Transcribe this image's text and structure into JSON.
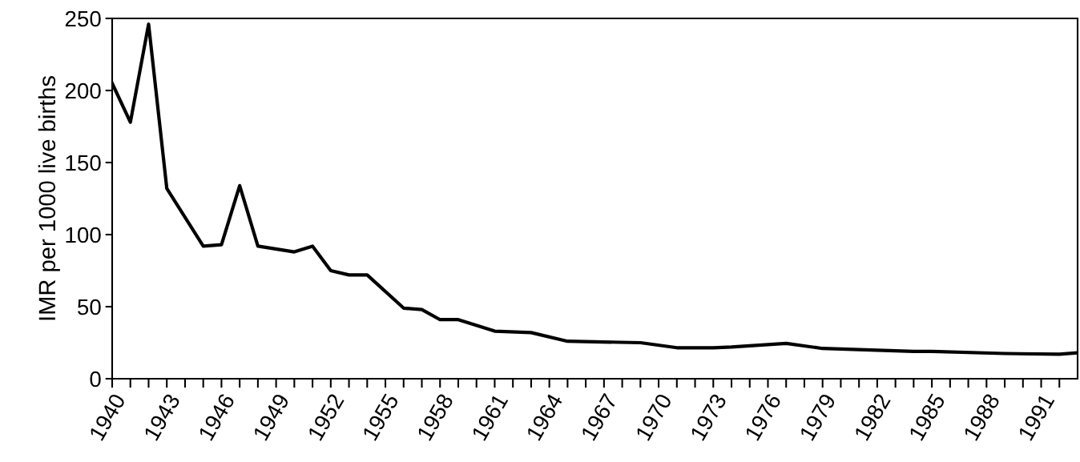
{
  "chart_data": {
    "type": "line",
    "ylabel": "IMR per 1000 live births",
    "xlim": [
      1940,
      1993
    ],
    "ylim": [
      0,
      250
    ],
    "yticks": [
      0,
      50,
      100,
      150,
      200,
      250
    ],
    "xticks": [
      1940,
      {
        "value": 1941,
        "label": null
      },
      {
        "value": 1942,
        "label": null
      },
      1943,
      {
        "value": 1944,
        "label": null
      },
      {
        "value": 1945,
        "label": null
      },
      1946,
      {
        "value": 1947,
        "label": null
      },
      {
        "value": 1948,
        "label": null
      },
      1949,
      {
        "value": 1950,
        "label": null
      },
      {
        "value": 1951,
        "label": null
      },
      1952,
      {
        "value": 1953,
        "label": null
      },
      {
        "value": 1954,
        "label": null
      },
      1955,
      {
        "value": 1956,
        "label": null
      },
      {
        "value": 1957,
        "label": null
      },
      1958,
      {
        "value": 1959,
        "label": null
      },
      {
        "value": 1960,
        "label": null
      },
      1961,
      {
        "value": 1962,
        "label": null
      },
      {
        "value": 1963,
        "label": null
      },
      1964,
      {
        "value": 1965,
        "label": null
      },
      {
        "value": 1966,
        "label": null
      },
      1967,
      {
        "value": 1968,
        "label": null
      },
      {
        "value": 1969,
        "label": null
      },
      1970,
      {
        "value": 1971,
        "label": null
      },
      {
        "value": 1972,
        "label": null
      },
      1973,
      {
        "value": 1974,
        "label": null
      },
      {
        "value": 1975,
        "label": null
      },
      1976,
      {
        "value": 1977,
        "label": null
      },
      {
        "value": 1978,
        "label": null
      },
      1979,
      {
        "value": 1980,
        "label": null
      },
      {
        "value": 1981,
        "label": null
      },
      1982,
      {
        "value": 1983,
        "label": null
      },
      {
        "value": 1984,
        "label": null
      },
      1985,
      {
        "value": 1986,
        "label": null
      },
      {
        "value": 1987,
        "label": null
      },
      1988,
      {
        "value": 1989,
        "label": null
      },
      {
        "value": 1990,
        "label": null
      },
      1991,
      {
        "value": 1992,
        "label": null
      }
    ],
    "x": [
      1940,
      1941,
      1942,
      1943,
      1945,
      1946,
      1947,
      1948,
      1950,
      1951,
      1952,
      1953,
      1954,
      1956,
      1957,
      1958,
      1959,
      1961,
      1963,
      1965,
      1969,
      1971,
      1973,
      1974,
      1977,
      1979,
      1984,
      1985,
      1989,
      1992,
      1993
    ],
    "series": [
      {
        "color": "#000000",
        "values": [
          205,
          178,
          246,
          132,
          92,
          93,
          134,
          92,
          88,
          92,
          75,
          72,
          72,
          49,
          48,
          41,
          41,
          33,
          32,
          26,
          25,
          21.5,
          21.5,
          22,
          24.5,
          21,
          19,
          19,
          17.5,
          17,
          18
        ]
      }
    ],
    "grid": false,
    "marker": "none",
    "line_style": "solid"
  }
}
